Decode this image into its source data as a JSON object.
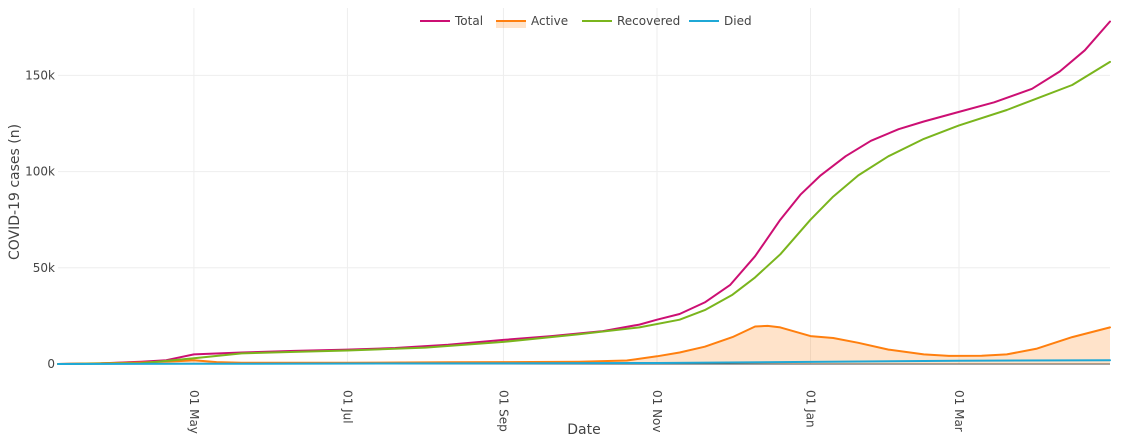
{
  "chart_data": {
    "type": "line",
    "xlabel": "Date",
    "ylabel": "COVID-19 cases (n)",
    "x_range": [
      "2020-03-08",
      "2021-04-30"
    ],
    "ylim": [
      0,
      185000
    ],
    "grid": true,
    "legend_position": "top-center",
    "x_ticks": [
      {
        "date": "2020-05-01",
        "label": "01 May"
      },
      {
        "date": "2020-07-01",
        "label": "01 Jul"
      },
      {
        "date": "2020-09-01",
        "label": "01 Sep"
      },
      {
        "date": "2020-11-01",
        "label": "01 Nov"
      },
      {
        "date": "2021-01-01",
        "label": "01 Jan"
      },
      {
        "date": "2021-03-01",
        "label": "01 Mar"
      }
    ],
    "y_ticks": [
      {
        "value": 0,
        "label": "0"
      },
      {
        "value": 50000,
        "label": "50k"
      },
      {
        "value": 100000,
        "label": "100k"
      },
      {
        "value": 150000,
        "label": "150k"
      }
    ],
    "series": [
      {
        "name": "Total",
        "color": "#cc0f73",
        "fill": false,
        "points": [
          [
            "2020-03-08",
            0
          ],
          [
            "2020-03-25",
            300
          ],
          [
            "2020-04-10",
            1200
          ],
          [
            "2020-04-20",
            2000
          ],
          [
            "2020-05-01",
            5000
          ],
          [
            "2020-05-20",
            6000
          ],
          [
            "2020-06-10",
            6800
          ],
          [
            "2020-07-01",
            7500
          ],
          [
            "2020-07-20",
            8300
          ],
          [
            "2020-08-10",
            10000
          ],
          [
            "2020-09-01",
            12500
          ],
          [
            "2020-09-20",
            14500
          ],
          [
            "2020-10-10",
            17000
          ],
          [
            "2020-10-25",
            20500
          ],
          [
            "2020-11-01",
            23000
          ],
          [
            "2020-11-10",
            26000
          ],
          [
            "2020-11-20",
            32000
          ],
          [
            "2020-11-30",
            41000
          ],
          [
            "2020-12-10",
            56000
          ],
          [
            "2020-12-20",
            75000
          ],
          [
            "2020-12-28",
            88000
          ],
          [
            "2021-01-05",
            98000
          ],
          [
            "2021-01-15",
            108000
          ],
          [
            "2021-01-25",
            116000
          ],
          [
            "2021-02-05",
            122000
          ],
          [
            "2021-02-15",
            126000
          ],
          [
            "2021-03-01",
            131000
          ],
          [
            "2021-03-15",
            136000
          ],
          [
            "2021-03-30",
            143000
          ],
          [
            "2021-04-10",
            152000
          ],
          [
            "2021-04-20",
            163000
          ],
          [
            "2021-04-30",
            178000
          ]
        ]
      },
      {
        "name": "Active",
        "color": "#ff7f0e",
        "fill": true,
        "fill_color": "rgba(255,127,14,0.22)",
        "points": [
          [
            "2020-03-08",
            0
          ],
          [
            "2020-04-10",
            800
          ],
          [
            "2020-04-25",
            1500
          ],
          [
            "2020-05-01",
            1900
          ],
          [
            "2020-05-10",
            1000
          ],
          [
            "2020-05-20",
            700
          ],
          [
            "2020-07-01",
            700
          ],
          [
            "2020-08-10",
            900
          ],
          [
            "2020-09-01",
            1000
          ],
          [
            "2020-10-01",
            1200
          ],
          [
            "2020-10-20",
            1800
          ],
          [
            "2020-11-01",
            4000
          ],
          [
            "2020-11-10",
            6000
          ],
          [
            "2020-11-20",
            9000
          ],
          [
            "2020-12-01",
            14000
          ],
          [
            "2020-12-10",
            19500
          ],
          [
            "2020-12-15",
            19800
          ],
          [
            "2020-12-20",
            19000
          ],
          [
            "2021-01-01",
            14500
          ],
          [
            "2021-01-10",
            13500
          ],
          [
            "2021-01-20",
            11000
          ],
          [
            "2021-02-01",
            7500
          ],
          [
            "2021-02-15",
            5000
          ],
          [
            "2021-02-25",
            4200
          ],
          [
            "2021-03-10",
            4300
          ],
          [
            "2021-03-20",
            5000
          ],
          [
            "2021-04-01",
            8000
          ],
          [
            "2021-04-15",
            14000
          ],
          [
            "2021-04-30",
            19000
          ]
        ]
      },
      {
        "name": "Recovered",
        "color": "#7ab51d",
        "fill": false,
        "points": [
          [
            "2020-03-08",
            0
          ],
          [
            "2020-04-10",
            400
          ],
          [
            "2020-05-01",
            3000
          ],
          [
            "2020-05-20",
            5500
          ],
          [
            "2020-06-10",
            6300
          ],
          [
            "2020-07-01",
            7000
          ],
          [
            "2020-08-01",
            8500
          ],
          [
            "2020-09-01",
            11500
          ],
          [
            "2020-10-01",
            15500
          ],
          [
            "2020-10-25",
            19000
          ],
          [
            "2020-11-10",
            23000
          ],
          [
            "2020-11-20",
            28000
          ],
          [
            "2020-12-01",
            36000
          ],
          [
            "2020-12-10",
            45000
          ],
          [
            "2020-12-20",
            57000
          ],
          [
            "2021-01-01",
            75000
          ],
          [
            "2021-01-10",
            87000
          ],
          [
            "2021-01-20",
            98000
          ],
          [
            "2021-02-01",
            108000
          ],
          [
            "2021-02-15",
            117000
          ],
          [
            "2021-03-01",
            124000
          ],
          [
            "2021-03-20",
            132000
          ],
          [
            "2021-04-01",
            138000
          ],
          [
            "2021-04-15",
            145000
          ],
          [
            "2021-04-30",
            157000
          ]
        ]
      },
      {
        "name": "Died",
        "color": "#1fa8d6",
        "fill": false,
        "points": [
          [
            "2020-03-08",
            0
          ],
          [
            "2020-05-01",
            100
          ],
          [
            "2020-09-01",
            300
          ],
          [
            "2020-11-01",
            500
          ],
          [
            "2021-01-01",
            1100
          ],
          [
            "2021-03-01",
            1700
          ],
          [
            "2021-04-30",
            2000
          ]
        ]
      }
    ]
  }
}
